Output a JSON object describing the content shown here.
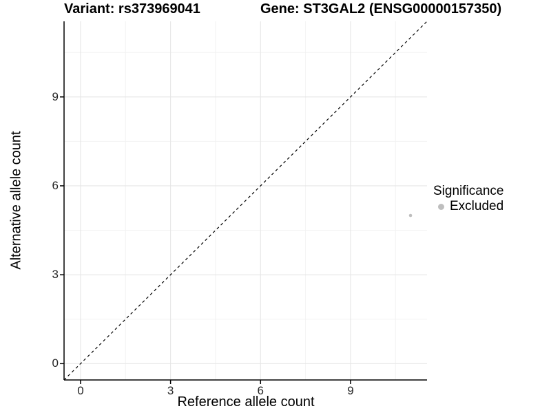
{
  "chart_data": {
    "type": "scatter",
    "titles": {
      "variant": "Variant: rs373969041",
      "gene": "Gene: ST3GAL2 (ENSG00000157350)"
    },
    "xlabel": "Reference allele count",
    "ylabel": "Alternative allele count",
    "xlim": [
      0,
      11
    ],
    "ylim": [
      0,
      11
    ],
    "ticks": [
      0,
      3,
      6,
      9
    ],
    "minor_ticks": [
      1.5,
      4.5,
      7.5,
      10.5
    ],
    "grid": "on",
    "points": [
      {
        "x": 11,
        "y": 5,
        "significance": "Excluded"
      }
    ],
    "identity_line": {
      "style": "dashed",
      "slope": 1,
      "intercept": 0
    },
    "legend": {
      "title": "Significance",
      "position": "right",
      "items": [
        {
          "label": "Excluded",
          "color": "#bebebe"
        }
      ]
    },
    "colors": {
      "point": "#bebebe",
      "grid_major": "#e6e6e6",
      "grid_minor": "#f2f2f2",
      "axis": "#000000",
      "identity_line": "#000000"
    }
  }
}
